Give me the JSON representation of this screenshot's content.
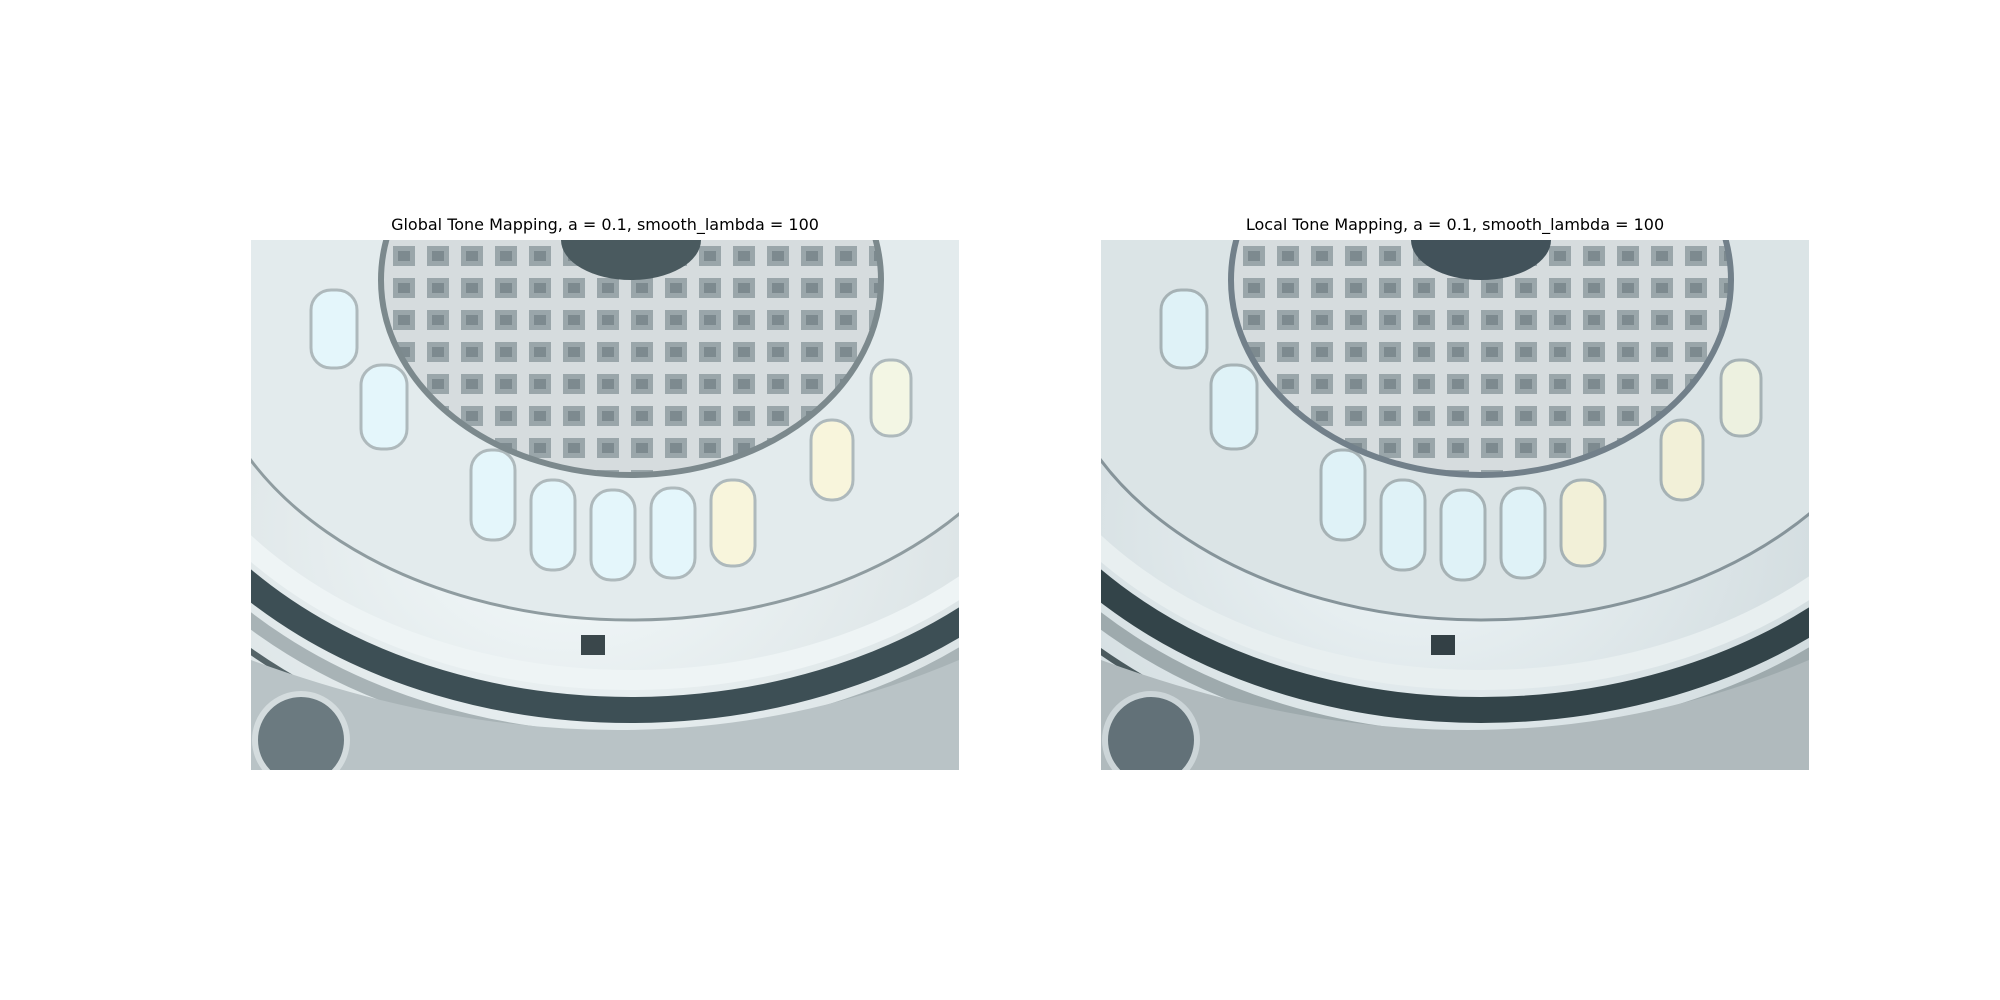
{
  "panels": [
    {
      "title": "Global Tone Mapping, a = 0.1, smooth_lambda = 100",
      "image": "dome-interior-global-tonemap"
    },
    {
      "title": "Local Tone Mapping, a = 0.1, smooth_lambda = 100",
      "image": "dome-interior-local-tonemap"
    }
  ],
  "colors": {
    "wall": "#c9d1d3",
    "dark_ring": "#3d4f55",
    "window_light": "#e4f6fb",
    "window_warm": "#f8f5dc"
  }
}
